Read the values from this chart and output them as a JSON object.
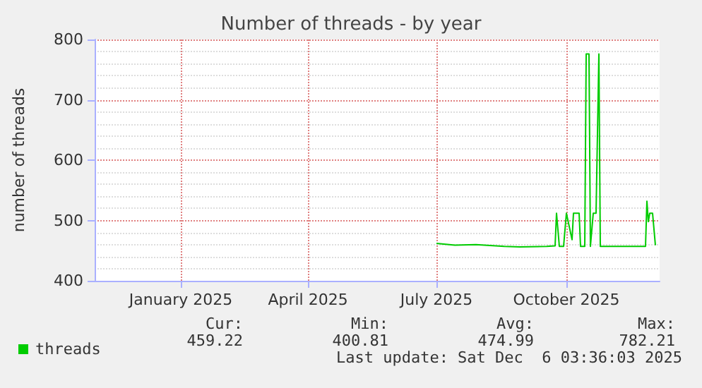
{
  "chart_data": {
    "type": "line",
    "title": "Number of threads - by year",
    "ylabel": "number of threads",
    "xlim": [
      "2024-11-01",
      "2025-12-06"
    ],
    "xticks": [
      {
        "value": "2025-01-01",
        "label": "January 2025"
      },
      {
        "value": "2025-04-01",
        "label": "April 2025"
      },
      {
        "value": "2025-07-01",
        "label": "July 2025"
      },
      {
        "value": "2025-10-01",
        "label": "October 2025"
      }
    ],
    "ylim": [
      400,
      800
    ],
    "yticks": [
      400,
      500,
      600,
      700,
      800
    ],
    "grid": true,
    "legend": "bottom",
    "marker": "none",
    "line_style": "solid",
    "x": [
      "2025-07-01",
      "2025-07-14",
      "2025-07-29",
      "2025-08-18",
      "2025-08-29",
      "2025-09-17",
      "2025-09-23",
      "2025-09-24",
      "2025-09-26",
      "2025-09-29",
      "2025-10-01",
      "2025-10-05",
      "2025-10-06",
      "2025-10-10",
      "2025-10-11",
      "2025-10-14",
      "2025-10-15",
      "2025-10-17",
      "2025-10-18",
      "2025-10-20",
      "2025-10-22",
      "2025-10-24",
      "2025-10-25",
      "2025-11-16",
      "2025-11-26",
      "2025-11-27",
      "2025-11-28",
      "2025-11-29",
      "2025-12-01",
      "2025-12-03"
    ],
    "series": [
      {
        "name": "threads",
        "color": "#00cc00",
        "values": [
          462,
          459,
          460,
          457,
          456,
          457,
          458,
          512,
          457,
          457,
          512,
          468,
          512,
          512,
          457,
          457,
          776,
          776,
          457,
          512,
          512,
          776,
          457,
          457,
          457,
          532,
          498,
          512,
          512,
          459
        ]
      }
    ],
    "annotations": [
      "Cur:",
      "Min:",
      "Avg:",
      "Max:",
      "459.22",
      "400.81",
      "474.99",
      "782.21",
      "Last update: Sat Dec  6 03:36:03 2025"
    ]
  }
}
